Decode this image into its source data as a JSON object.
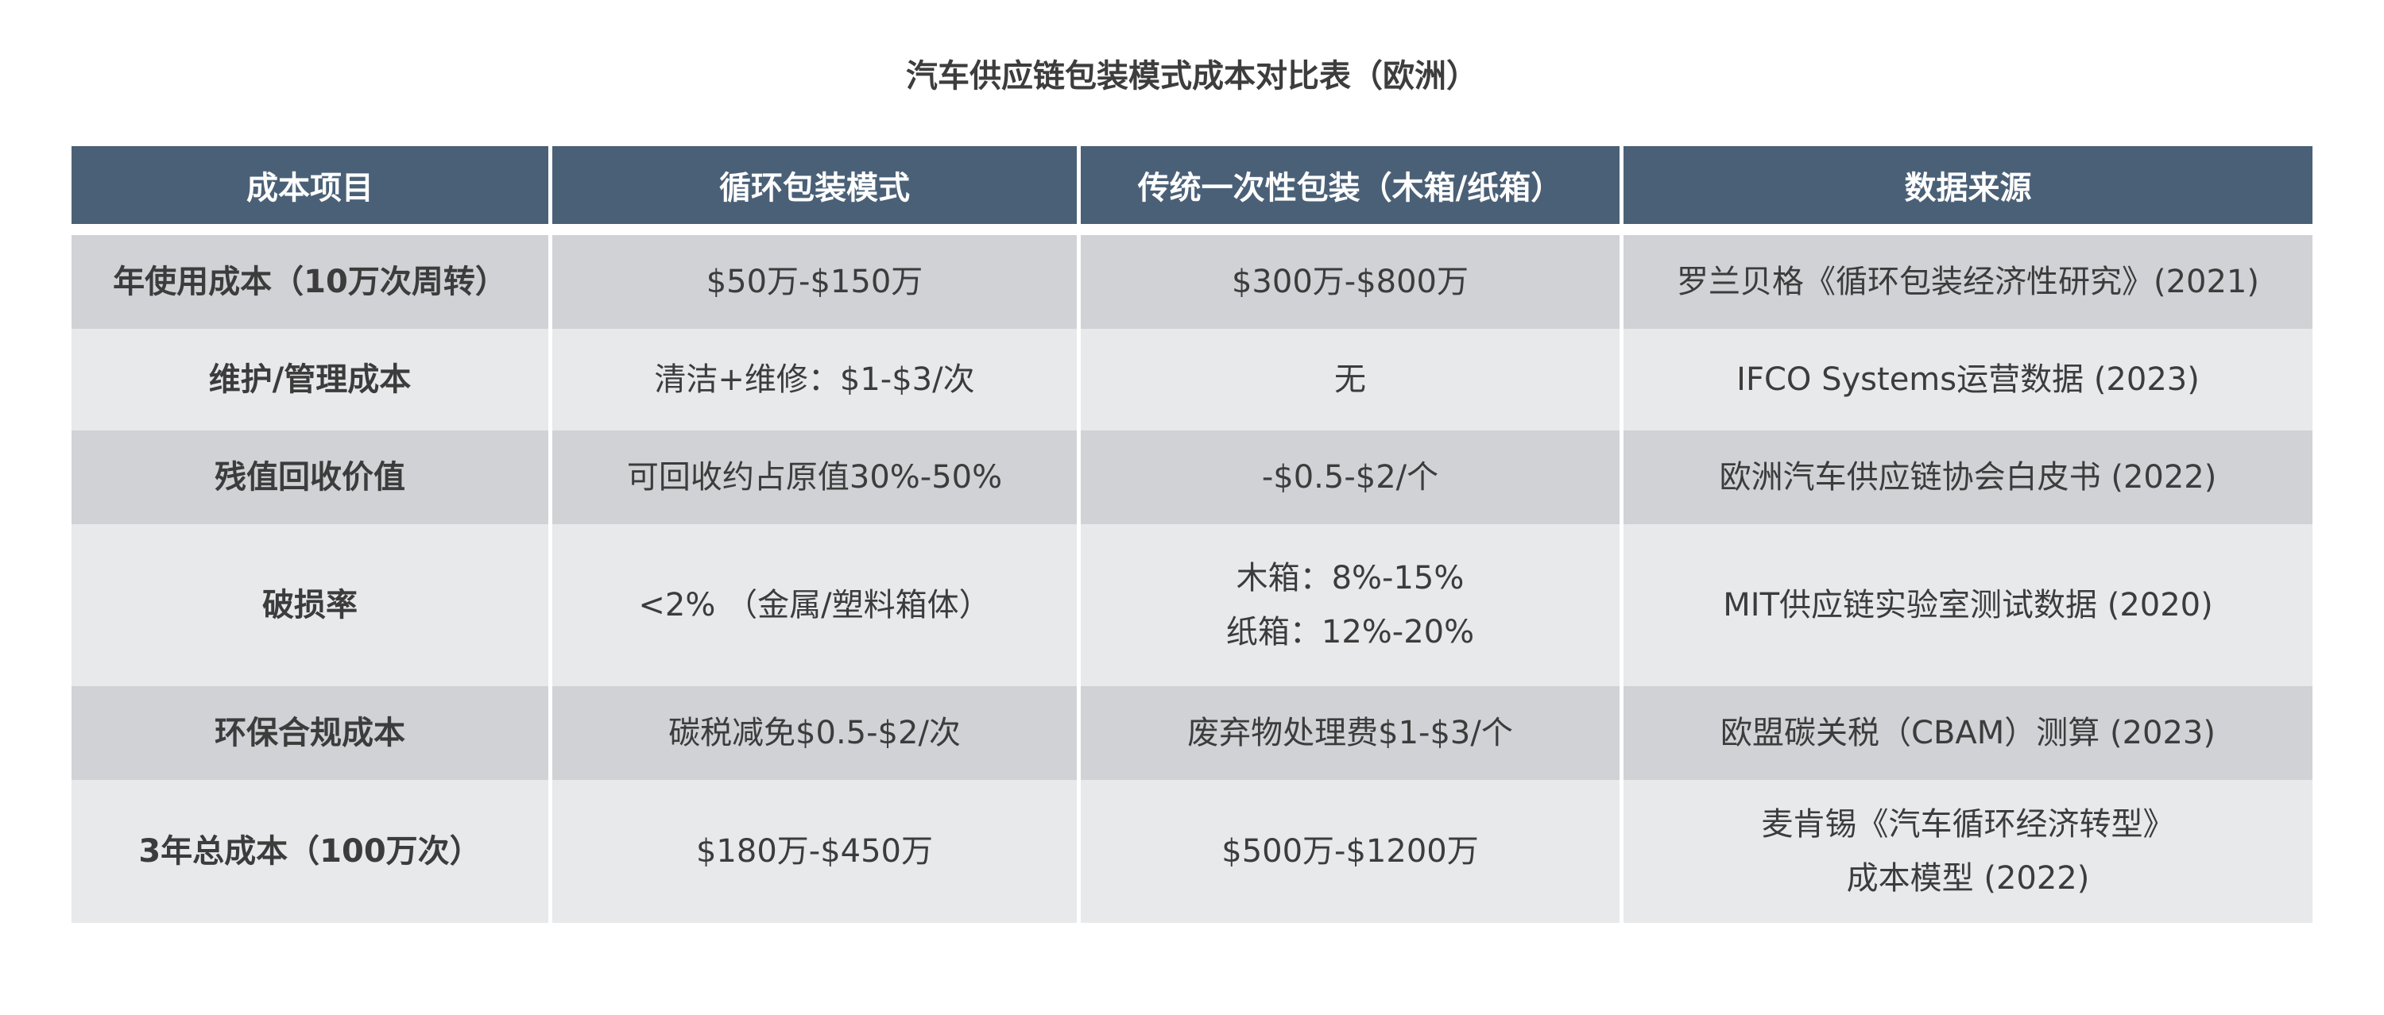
{
  "title": "汽车供应链包装模式成本对比表（欧洲）",
  "table": {
    "headers": [
      "成本项目",
      "循环包装模式",
      "传统一次性包装（木箱/纸箱）",
      "数据来源"
    ],
    "rows": [
      {
        "item": "年使用成本（10万次周转）",
        "circular": [
          "$50万-$150万"
        ],
        "traditional": [
          "$300万-$800万"
        ],
        "source": [
          "罗兰贝格《循环包装经济性研究》(2021)"
        ]
      },
      {
        "item": "维护/管理成本",
        "circular": [
          "清洁+维修：$1-$3/次"
        ],
        "traditional": [
          "无"
        ],
        "source": [
          "IFCO Systems运营数据 (2023)"
        ]
      },
      {
        "item": "残值回收价值",
        "circular": [
          "可回收约占原值30%-50%"
        ],
        "traditional": [
          "-$0.5-$2/个"
        ],
        "source": [
          "欧洲汽车供应链协会白皮书 (2022)"
        ]
      },
      {
        "item": "破损率",
        "circular": [
          "<2% （金属/塑料箱体）"
        ],
        "traditional": [
          "木箱：8%-15%",
          "纸箱：12%-20%"
        ],
        "source": [
          "MIT供应链实验室测试数据 (2020)"
        ]
      },
      {
        "item": "环保合规成本",
        "circular": [
          "碳税减免$0.5-$2/次"
        ],
        "traditional": [
          "废弃物处理费$1-$3/个"
        ],
        "source": [
          "欧盟碳关税（CBAM）测算 (2023)"
        ]
      },
      {
        "item": "3年总成本（100万次）",
        "circular": [
          "$180万-$450万"
        ],
        "traditional": [
          "$500万-$1200万"
        ],
        "source": [
          "麦肯锡《汽车循环经济转型》",
          "成本模型 (2022)"
        ]
      }
    ]
  },
  "colors": {
    "header_bg": "#4a6077",
    "row_dark": "#d0d2d6",
    "row_light": "#e8e9eb"
  }
}
